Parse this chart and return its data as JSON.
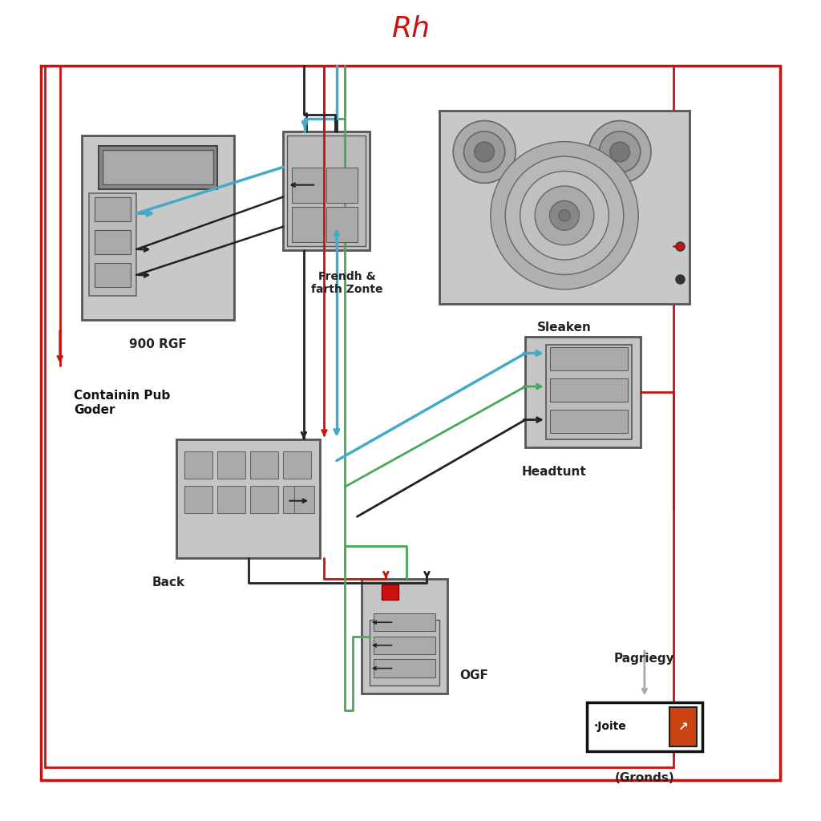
{
  "title": "Rh",
  "title_color": "#cc1111",
  "bg_color": "#ffffff",
  "colors": {
    "red": "#cc1111",
    "black": "#222222",
    "blue": "#44aacc",
    "green": "#44aa55",
    "gray": "#aaaaaa",
    "comp_fill": "#c8c8c8",
    "comp_fill2": "#bbbbbb",
    "comp_edge": "#555555",
    "dark_edge": "#333333",
    "orange": "#cc4411"
  },
  "labels": {
    "radio": "900 RGF",
    "radio_sub": "Containin Pub\nGoder",
    "frendh": "Frendh &\nfarth Zonte",
    "speaker": "Sleaken",
    "back": "Back",
    "headtunt": "Headtunt",
    "ogf": "OGF",
    "joite": "·Joite",
    "pagriegy": "Pagriegy",
    "gronds": "(Gronds)"
  }
}
